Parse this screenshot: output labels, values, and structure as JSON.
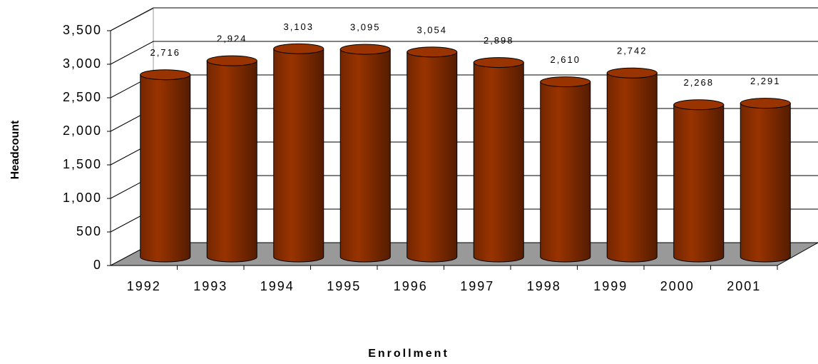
{
  "chart_data": {
    "type": "bar",
    "x_label": "Enrollment",
    "y_label": "Headcount",
    "categories": [
      "1992",
      "1993",
      "1994",
      "1995",
      "1996",
      "1997",
      "1998",
      "1999",
      "2000",
      "2001"
    ],
    "values": [
      2716,
      2924,
      3103,
      3095,
      3054,
      2898,
      2610,
      2742,
      2268,
      2291
    ],
    "value_labels": [
      "2,716",
      "2,924",
      "3,103",
      "3,095",
      "3,054",
      "2,898",
      "2,610",
      "2,742",
      "2,268",
      "2,291"
    ],
    "color": "#993300",
    "ylim": [
      0,
      3500
    ],
    "yticks": [
      0,
      500,
      {
        "value": 1000,
        "label": "1,000"
      },
      {
        "value": 1500,
        "label": "1,500"
      },
      {
        "value": 2000,
        "label": "2,000"
      },
      {
        "value": 2500,
        "label": "2,500"
      },
      {
        "value": 3000,
        "label": "3,000"
      },
      {
        "value": 3500,
        "label": "3,500"
      }
    ],
    "grid": true
  }
}
